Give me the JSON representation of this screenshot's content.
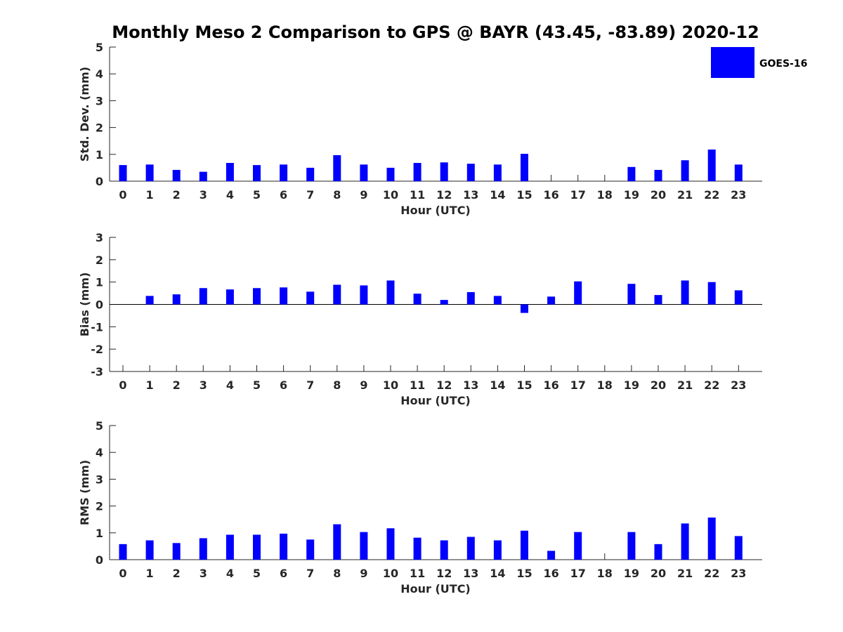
{
  "chart_data": {
    "title": "Monthly Meso 2 Comparison to GPS @ BAYR (43.45, -83.89) 2020-12",
    "legend": [
      {
        "label": "GOES-16",
        "color": "#0000ff"
      }
    ],
    "bar_color": "#0000ff",
    "panels": [
      {
        "id": "std-dev",
        "type": "bar",
        "ylabel": "Std. Dev. (mm)",
        "xlabel": "Hour (UTC)",
        "ylim": [
          0,
          5
        ],
        "yticks": [
          "0",
          "1",
          "2",
          "3",
          "4",
          "5"
        ],
        "categories": [
          "0",
          "1",
          "2",
          "3",
          "4",
          "5",
          "6",
          "7",
          "8",
          "9",
          "10",
          "11",
          "12",
          "13",
          "14",
          "15",
          "16",
          "17",
          "18",
          "19",
          "20",
          "21",
          "22",
          "23"
        ],
        "values": [
          0.6,
          0.62,
          0.42,
          0.35,
          0.68,
          0.6,
          0.62,
          0.5,
          0.97,
          0.62,
          0.5,
          0.68,
          0.7,
          0.65,
          0.62,
          1.02,
          null,
          null,
          null,
          0.53,
          0.42,
          0.78,
          1.18,
          0.62
        ]
      },
      {
        "id": "bias",
        "type": "bar",
        "ylabel": "Bias (mm)",
        "xlabel": "Hour (UTC)",
        "ylim": [
          -3,
          3
        ],
        "yticks": [
          "-3",
          "-2",
          "-1",
          "0",
          "1",
          "2",
          "3"
        ],
        "categories": [
          "0",
          "1",
          "2",
          "3",
          "4",
          "5",
          "6",
          "7",
          "8",
          "9",
          "10",
          "11",
          "12",
          "13",
          "14",
          "15",
          "16",
          "17",
          "18",
          "19",
          "20",
          "21",
          "22",
          "23"
        ],
        "values": [
          null,
          0.38,
          0.45,
          0.73,
          0.67,
          0.73,
          0.76,
          0.57,
          0.88,
          0.85,
          1.07,
          0.48,
          0.2,
          0.55,
          0.38,
          -0.38,
          0.35,
          1.03,
          null,
          0.92,
          0.42,
          1.07,
          1.0,
          0.63
        ]
      },
      {
        "id": "rms",
        "type": "bar",
        "ylabel": "RMS (mm)",
        "xlabel": "Hour (UTC)",
        "ylim": [
          0,
          5
        ],
        "yticks": [
          "0",
          "1",
          "2",
          "3",
          "4",
          "5"
        ],
        "categories": [
          "0",
          "1",
          "2",
          "3",
          "4",
          "5",
          "6",
          "7",
          "8",
          "9",
          "10",
          "11",
          "12",
          "13",
          "14",
          "15",
          "16",
          "17",
          "18",
          "19",
          "20",
          "21",
          "22",
          "23"
        ],
        "values": [
          0.58,
          0.72,
          0.62,
          0.8,
          0.93,
          0.93,
          0.97,
          0.75,
          1.32,
          1.03,
          1.17,
          0.82,
          0.72,
          0.85,
          0.72,
          1.08,
          0.33,
          1.03,
          null,
          1.03,
          0.58,
          1.35,
          1.57,
          0.88
        ]
      }
    ]
  }
}
